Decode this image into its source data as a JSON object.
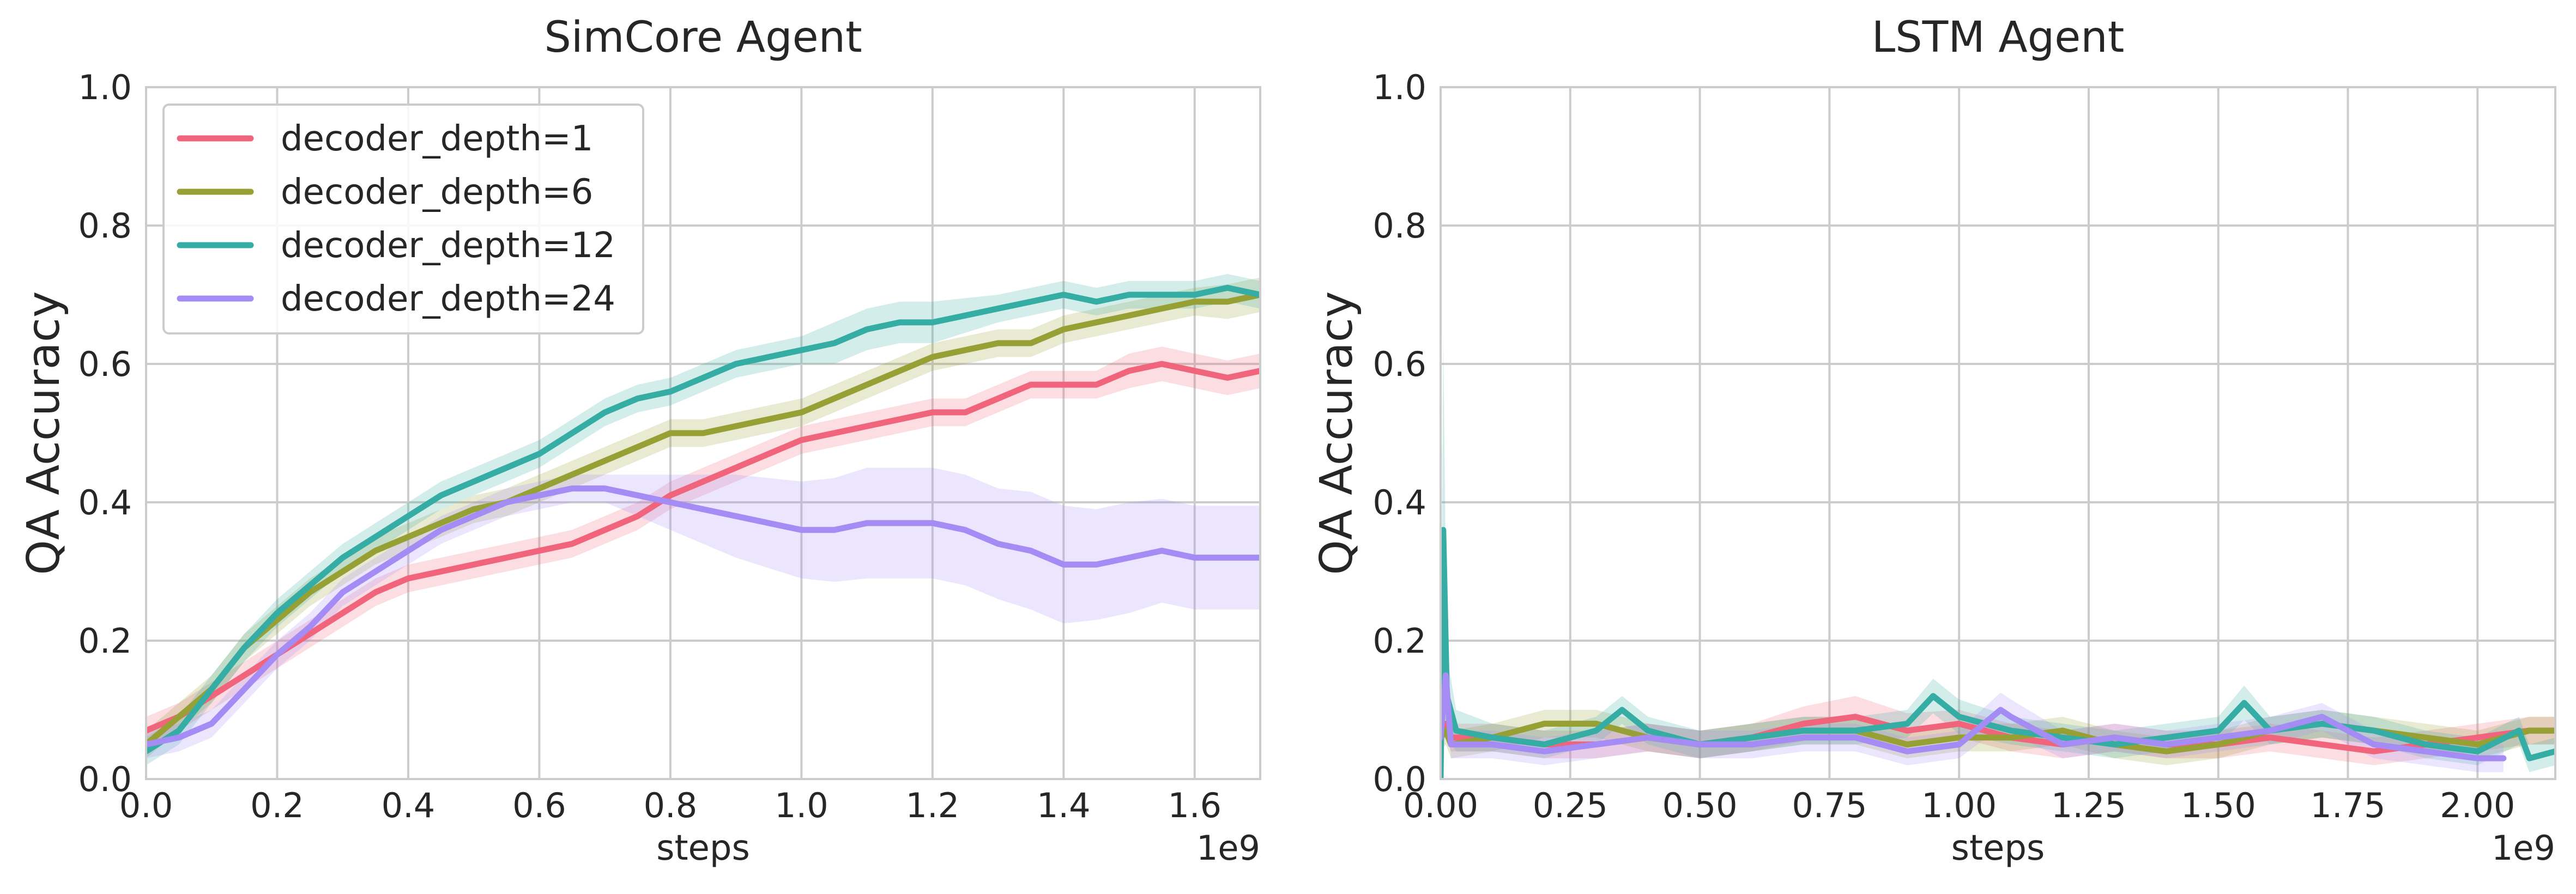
{
  "chart_data": [
    {
      "type": "line",
      "title": "SimCore Agent",
      "xlabel": "steps",
      "ylabel": "QA Accuracy",
      "x_offset_label": "1e9",
      "xlim": [
        0,
        1.7
      ],
      "ylim": [
        0,
        1.0
      ],
      "xticks": [
        0.0,
        0.2,
        0.4,
        0.6,
        0.8,
        1.0,
        1.2,
        1.4,
        1.6
      ],
      "xtick_labels": [
        "0.0",
        "0.2",
        "0.4",
        "0.6",
        "0.8",
        "1.0",
        "1.2",
        "1.4",
        "1.6"
      ],
      "yticks": [
        0.0,
        0.2,
        0.4,
        0.6,
        0.8,
        1.0
      ],
      "ytick_labels": [
        "0.0",
        "0.2",
        "0.4",
        "0.6",
        "0.8",
        "1.0"
      ],
      "grid": true,
      "legend_position": "top-left",
      "series": [
        {
          "name": "decoder_depth=1",
          "color": "#f0647c",
          "x": [
            0,
            0.05,
            0.1,
            0.15,
            0.2,
            0.25,
            0.3,
            0.35,
            0.4,
            0.45,
            0.5,
            0.55,
            0.6,
            0.65,
            0.7,
            0.75,
            0.8,
            0.85,
            0.9,
            0.95,
            1.0,
            1.05,
            1.1,
            1.15,
            1.2,
            1.25,
            1.3,
            1.35,
            1.4,
            1.45,
            1.5,
            1.55,
            1.6,
            1.65,
            1.7
          ],
          "y": [
            0.07,
            0.09,
            0.12,
            0.15,
            0.18,
            0.21,
            0.24,
            0.27,
            0.29,
            0.3,
            0.31,
            0.32,
            0.33,
            0.34,
            0.36,
            0.38,
            0.41,
            0.43,
            0.45,
            0.47,
            0.49,
            0.5,
            0.51,
            0.52,
            0.53,
            0.53,
            0.55,
            0.57,
            0.57,
            0.57,
            0.59,
            0.6,
            0.59,
            0.58,
            0.59
          ],
          "band": [
            0.02,
            0.02,
            0.02,
            0.02,
            0.02,
            0.02,
            0.02,
            0.02,
            0.02,
            0.02,
            0.02,
            0.02,
            0.02,
            0.02,
            0.02,
            0.02,
            0.02,
            0.02,
            0.02,
            0.02,
            0.02,
            0.02,
            0.02,
            0.02,
            0.02,
            0.02,
            0.02,
            0.02,
            0.02,
            0.02,
            0.025,
            0.025,
            0.025,
            0.025,
            0.025
          ]
        },
        {
          "name": "decoder_depth=6",
          "color": "#96a034",
          "x": [
            0,
            0.05,
            0.1,
            0.15,
            0.2,
            0.25,
            0.3,
            0.35,
            0.4,
            0.45,
            0.5,
            0.55,
            0.6,
            0.65,
            0.7,
            0.75,
            0.8,
            0.85,
            0.9,
            0.95,
            1.0,
            1.05,
            1.1,
            1.15,
            1.2,
            1.25,
            1.3,
            1.35,
            1.4,
            1.45,
            1.5,
            1.55,
            1.6,
            1.65,
            1.7
          ],
          "y": [
            0.05,
            0.09,
            0.13,
            0.19,
            0.23,
            0.27,
            0.3,
            0.33,
            0.35,
            0.37,
            0.39,
            0.4,
            0.42,
            0.44,
            0.46,
            0.48,
            0.5,
            0.5,
            0.51,
            0.52,
            0.53,
            0.55,
            0.57,
            0.59,
            0.61,
            0.62,
            0.63,
            0.63,
            0.65,
            0.66,
            0.67,
            0.68,
            0.69,
            0.69,
            0.7
          ],
          "band": [
            0.02,
            0.02,
            0.02,
            0.02,
            0.02,
            0.02,
            0.02,
            0.02,
            0.02,
            0.02,
            0.02,
            0.02,
            0.02,
            0.02,
            0.02,
            0.02,
            0.02,
            0.02,
            0.02,
            0.02,
            0.02,
            0.02,
            0.02,
            0.02,
            0.02,
            0.02,
            0.02,
            0.02,
            0.02,
            0.02,
            0.02,
            0.02,
            0.02,
            0.025,
            0.025
          ]
        },
        {
          "name": "decoder_depth=12",
          "color": "#36ada4",
          "x": [
            0,
            0.05,
            0.1,
            0.15,
            0.2,
            0.25,
            0.3,
            0.35,
            0.4,
            0.45,
            0.5,
            0.55,
            0.6,
            0.65,
            0.7,
            0.75,
            0.8,
            0.85,
            0.9,
            0.95,
            1.0,
            1.05,
            1.1,
            1.15,
            1.2,
            1.25,
            1.3,
            1.35,
            1.4,
            1.45,
            1.5,
            1.55,
            1.6,
            1.65,
            1.7
          ],
          "y": [
            0.04,
            0.07,
            0.13,
            0.19,
            0.24,
            0.28,
            0.32,
            0.35,
            0.38,
            0.41,
            0.43,
            0.45,
            0.47,
            0.5,
            0.53,
            0.55,
            0.56,
            0.58,
            0.6,
            0.61,
            0.62,
            0.63,
            0.65,
            0.66,
            0.66,
            0.67,
            0.68,
            0.69,
            0.7,
            0.69,
            0.7,
            0.7,
            0.7,
            0.71,
            0.7
          ],
          "band": [
            0.02,
            0.02,
            0.02,
            0.02,
            0.02,
            0.02,
            0.02,
            0.02,
            0.02,
            0.02,
            0.02,
            0.02,
            0.02,
            0.02,
            0.02,
            0.02,
            0.02,
            0.02,
            0.02,
            0.02,
            0.02,
            0.03,
            0.03,
            0.03,
            0.03,
            0.025,
            0.02,
            0.02,
            0.02,
            0.02,
            0.02,
            0.02,
            0.02,
            0.02,
            0.02
          ]
        },
        {
          "name": "decoder_depth=24",
          "color": "#a48cf4",
          "x": [
            0,
            0.05,
            0.1,
            0.15,
            0.2,
            0.25,
            0.3,
            0.35,
            0.4,
            0.45,
            0.5,
            0.55,
            0.6,
            0.65,
            0.7,
            0.75,
            0.8,
            0.85,
            0.9,
            0.95,
            1.0,
            1.05,
            1.1,
            1.15,
            1.2,
            1.25,
            1.3,
            1.35,
            1.4,
            1.45,
            1.5,
            1.55,
            1.6,
            1.65,
            1.7
          ],
          "y": [
            0.05,
            0.06,
            0.08,
            0.13,
            0.18,
            0.22,
            0.27,
            0.3,
            0.33,
            0.36,
            0.38,
            0.4,
            0.41,
            0.42,
            0.42,
            0.41,
            0.4,
            0.39,
            0.38,
            0.37,
            0.36,
            0.36,
            0.37,
            0.37,
            0.37,
            0.36,
            0.34,
            0.33,
            0.31,
            0.31,
            0.32,
            0.33,
            0.32,
            0.32,
            0.32
          ],
          "band": [
            0.02,
            0.02,
            0.02,
            0.02,
            0.02,
            0.02,
            0.02,
            0.02,
            0.02,
            0.02,
            0.02,
            0.02,
            0.02,
            0.02,
            0.02,
            0.03,
            0.04,
            0.05,
            0.06,
            0.065,
            0.07,
            0.075,
            0.08,
            0.08,
            0.08,
            0.08,
            0.08,
            0.085,
            0.085,
            0.08,
            0.08,
            0.075,
            0.075,
            0.075,
            0.075
          ]
        }
      ]
    },
    {
      "type": "line",
      "title": "LSTM Agent",
      "xlabel": "steps",
      "ylabel": "QA Accuracy",
      "x_offset_label": "1e9",
      "xlim": [
        0,
        2.15
      ],
      "ylim": [
        0,
        1.0
      ],
      "xticks": [
        0.0,
        0.25,
        0.5,
        0.75,
        1.0,
        1.25,
        1.5,
        1.75,
        2.0
      ],
      "xtick_labels": [
        "0.00",
        "0.25",
        "0.50",
        "0.75",
        "1.00",
        "1.25",
        "1.50",
        "1.75",
        "2.00"
      ],
      "yticks": [
        0.0,
        0.2,
        0.4,
        0.6,
        0.8,
        1.0
      ],
      "ytick_labels": [
        "0.0",
        "0.2",
        "0.4",
        "0.6",
        "0.8",
        "1.0"
      ],
      "grid": true,
      "legend_position": "none",
      "series": [
        {
          "name": "decoder_depth=1",
          "color": "#f0647c",
          "x": [
            0,
            0.01,
            0.02,
            0.1,
            0.2,
            0.3,
            0.4,
            0.5,
            0.6,
            0.7,
            0.8,
            0.9,
            1.0,
            1.1,
            1.2,
            1.3,
            1.4,
            1.5,
            1.6,
            1.7,
            1.8,
            1.9,
            2.0,
            2.1,
            2.15
          ],
          "y": [
            0.07,
            0.08,
            0.06,
            0.06,
            0.05,
            0.05,
            0.06,
            0.05,
            0.06,
            0.08,
            0.09,
            0.07,
            0.08,
            0.06,
            0.05,
            0.06,
            0.05,
            0.05,
            0.06,
            0.05,
            0.04,
            0.05,
            0.06,
            0.07,
            0.07
          ],
          "band": [
            0.02,
            0.02,
            0.02,
            0.02,
            0.02,
            0.02,
            0.02,
            0.02,
            0.02,
            0.025,
            0.03,
            0.025,
            0.02,
            0.02,
            0.02,
            0.02,
            0.02,
            0.02,
            0.02,
            0.02,
            0.02,
            0.02,
            0.02,
            0.02,
            0.02
          ]
        },
        {
          "name": "decoder_depth=6",
          "color": "#96a034",
          "x": [
            0,
            0.01,
            0.02,
            0.1,
            0.2,
            0.3,
            0.4,
            0.5,
            0.6,
            0.7,
            0.8,
            0.9,
            1.0,
            1.1,
            1.2,
            1.3,
            1.4,
            1.5,
            1.6,
            1.7,
            1.8,
            1.9,
            2.0,
            2.1,
            2.15
          ],
          "y": [
            0.06,
            0.07,
            0.05,
            0.06,
            0.08,
            0.08,
            0.06,
            0.05,
            0.06,
            0.07,
            0.07,
            0.05,
            0.06,
            0.06,
            0.07,
            0.05,
            0.04,
            0.05,
            0.07,
            0.08,
            0.07,
            0.06,
            0.05,
            0.07,
            0.07
          ],
          "band": [
            0.02,
            0.02,
            0.02,
            0.02,
            0.02,
            0.02,
            0.02,
            0.02,
            0.02,
            0.02,
            0.02,
            0.02,
            0.02,
            0.02,
            0.02,
            0.02,
            0.02,
            0.02,
            0.02,
            0.02,
            0.02,
            0.02,
            0.02,
            0.02,
            0.02
          ]
        },
        {
          "name": "decoder_depth=12",
          "color": "#36ada4",
          "x": [
            0,
            0.005,
            0.012,
            0.03,
            0.1,
            0.2,
            0.3,
            0.35,
            0.4,
            0.5,
            0.6,
            0.7,
            0.8,
            0.9,
            0.95,
            1.0,
            1.1,
            1.2,
            1.3,
            1.4,
            1.5,
            1.55,
            1.6,
            1.7,
            1.8,
            1.9,
            2.0,
            2.08,
            2.1,
            2.15
          ],
          "y": [
            0.0,
            0.36,
            0.12,
            0.07,
            0.06,
            0.05,
            0.07,
            0.1,
            0.07,
            0.05,
            0.06,
            0.07,
            0.07,
            0.08,
            0.12,
            0.09,
            0.07,
            0.06,
            0.05,
            0.06,
            0.07,
            0.11,
            0.07,
            0.08,
            0.07,
            0.05,
            0.04,
            0.07,
            0.03,
            0.04
          ],
          "band": [
            0.02,
            0.28,
            0.06,
            0.03,
            0.02,
            0.02,
            0.02,
            0.02,
            0.02,
            0.02,
            0.02,
            0.02,
            0.02,
            0.02,
            0.025,
            0.025,
            0.02,
            0.02,
            0.02,
            0.02,
            0.02,
            0.025,
            0.02,
            0.02,
            0.02,
            0.02,
            0.02,
            0.02,
            0.02,
            0.02
          ]
        },
        {
          "name": "decoder_depth=24",
          "color": "#a48cf4",
          "x": [
            0,
            0.01,
            0.02,
            0.1,
            0.2,
            0.3,
            0.4,
            0.5,
            0.6,
            0.7,
            0.8,
            0.9,
            1.0,
            1.08,
            1.1,
            1.2,
            1.3,
            1.4,
            1.5,
            1.6,
            1.7,
            1.8,
            1.9,
            2.0,
            2.05
          ],
          "y": [
            0.06,
            0.15,
            0.05,
            0.05,
            0.04,
            0.05,
            0.06,
            0.05,
            0.05,
            0.06,
            0.06,
            0.04,
            0.05,
            0.1,
            0.09,
            0.05,
            0.06,
            0.05,
            0.06,
            0.07,
            0.09,
            0.05,
            0.04,
            0.03,
            0.03
          ],
          "band": [
            0.02,
            0.03,
            0.02,
            0.02,
            0.02,
            0.02,
            0.02,
            0.02,
            0.02,
            0.02,
            0.02,
            0.02,
            0.02,
            0.025,
            0.025,
            0.02,
            0.02,
            0.02,
            0.02,
            0.02,
            0.02,
            0.02,
            0.02,
            0.02,
            0.02
          ]
        }
      ]
    }
  ]
}
